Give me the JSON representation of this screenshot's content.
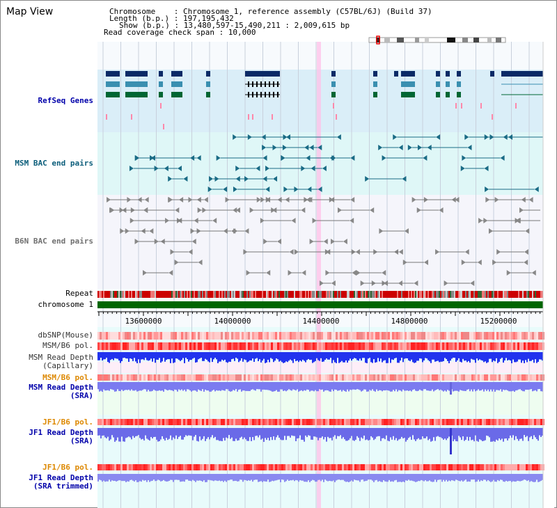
{
  "page": {
    "title": "Map View"
  },
  "header": {
    "chromosome": "Chromosome    : Chromosome 1, reference assembly (C57BL/6J) (Build 37)",
    "length": "Length (b.p.) : 197,195,432",
    "show": "Show (b.p.) : 13,480,597-15,490,211 : 2,009,615 bp",
    "coverage_span": "Read coverage check span : 10,000"
  },
  "tracks": {
    "refseq": "RefSeq Genes",
    "msm_bac": "MSM BAC end pairs",
    "b6n_bac": "B6N BAC end pairs",
    "repeat": "Repeat",
    "chromosome": "chromosome 1",
    "dbsnp": "dbSNP(Mouse)",
    "msm_b6_pol_1": "MSM/B6 pol.",
    "msm_read_depth_cap_1": "MSM Read Depth",
    "msm_read_depth_cap_2": "(Capillary)",
    "msm_b6_pol_2": "MSM/B6 pol.",
    "msm_read_depth_sra_1": "MSM Read Depth",
    "msm_read_depth_sra_2": "(SRA)",
    "jf1_b6_pol_1": "JF1/B6 pol.",
    "jf1_read_depth_sra_1": "JF1 Read Depth",
    "jf1_read_depth_sra_2": "(SRA)",
    "jf1_b6_pol_2": "JF1/B6 pol.",
    "jf1_read_depth_trim_1": "JF1 Read Depth",
    "jf1_read_depth_trim_2": "(SRA trimmed)"
  },
  "axis": {
    "ticks": [
      "13600000",
      "14000000",
      "14400000",
      "14800000",
      "15200000"
    ]
  },
  "colors": {
    "refseq_bg": "#daeef8",
    "msm_bg": "#dff7f7",
    "gene_navy": "#0a2a66",
    "gene_teal": "#3a8fb0",
    "gene_green": "#006633",
    "msm_bac": "#1a6b85",
    "b6n_bac": "#808080",
    "chrom_green": "#006600",
    "snp_red": "#ff4444",
    "depth_blue": "#2233ee",
    "depth_light": "#7b7bf0",
    "label_blue": "#0000aa",
    "label_orange": "#dd8800",
    "highlight_pink": "#ffc0e8"
  }
}
